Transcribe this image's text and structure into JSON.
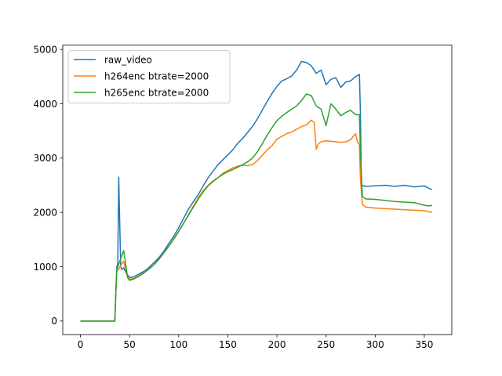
{
  "chart_data": {
    "type": "line",
    "title": "",
    "xlabel": "",
    "ylabel": "",
    "xlim": [
      -18,
      378
    ],
    "ylim": [
      -250,
      5080
    ],
    "xticks": [
      0,
      50,
      100,
      150,
      200,
      250,
      300,
      350
    ],
    "yticks": [
      0,
      1000,
      2000,
      3000,
      4000,
      5000
    ],
    "grid": false,
    "legend_position": "top-left",
    "series": [
      {
        "name": "raw_video",
        "color": "#1f77b4",
        "points": [
          [
            0,
            0
          ],
          [
            10,
            0
          ],
          [
            20,
            0
          ],
          [
            30,
            0
          ],
          [
            35,
            0
          ],
          [
            36,
            500
          ],
          [
            37,
            1000
          ],
          [
            38,
            1050
          ],
          [
            39,
            2650
          ],
          [
            40,
            1800
          ],
          [
            41,
            1000
          ],
          [
            42,
            950
          ],
          [
            44,
            980
          ],
          [
            46,
            900
          ],
          [
            48,
            850
          ],
          [
            50,
            800
          ],
          [
            55,
            820
          ],
          [
            60,
            870
          ],
          [
            65,
            920
          ],
          [
            70,
            990
          ],
          [
            75,
            1080
          ],
          [
            80,
            1170
          ],
          [
            85,
            1290
          ],
          [
            90,
            1430
          ],
          [
            95,
            1560
          ],
          [
            100,
            1720
          ],
          [
            105,
            1890
          ],
          [
            110,
            2060
          ],
          [
            115,
            2200
          ],
          [
            120,
            2330
          ],
          [
            125,
            2490
          ],
          [
            130,
            2640
          ],
          [
            135,
            2760
          ],
          [
            140,
            2880
          ],
          [
            145,
            2970
          ],
          [
            150,
            3060
          ],
          [
            155,
            3150
          ],
          [
            160,
            3270
          ],
          [
            165,
            3360
          ],
          [
            170,
            3470
          ],
          [
            175,
            3580
          ],
          [
            180,
            3720
          ],
          [
            185,
            3880
          ],
          [
            190,
            4040
          ],
          [
            195,
            4190
          ],
          [
            200,
            4320
          ],
          [
            205,
            4420
          ],
          [
            210,
            4460
          ],
          [
            215,
            4510
          ],
          [
            220,
            4620
          ],
          [
            225,
            4780
          ],
          [
            230,
            4760
          ],
          [
            235,
            4700
          ],
          [
            240,
            4560
          ],
          [
            245,
            4620
          ],
          [
            250,
            4350
          ],
          [
            255,
            4450
          ],
          [
            260,
            4480
          ],
          [
            265,
            4300
          ],
          [
            270,
            4400
          ],
          [
            275,
            4420
          ],
          [
            280,
            4500
          ],
          [
            284,
            4540
          ],
          [
            285,
            3800
          ],
          [
            286,
            2500
          ],
          [
            290,
            2480
          ],
          [
            300,
            2490
          ],
          [
            310,
            2500
          ],
          [
            320,
            2480
          ],
          [
            330,
            2500
          ],
          [
            340,
            2470
          ],
          [
            350,
            2490
          ],
          [
            355,
            2440
          ],
          [
            358,
            2420
          ]
        ]
      },
      {
        "name": "h264enc btrate=2000",
        "color": "#ff7f0e",
        "points": [
          [
            0,
            0
          ],
          [
            10,
            0
          ],
          [
            20,
            0
          ],
          [
            30,
            0
          ],
          [
            35,
            0
          ],
          [
            36,
            500
          ],
          [
            37,
            900
          ],
          [
            38,
            950
          ],
          [
            39,
            950
          ],
          [
            40,
            1000
          ],
          [
            42,
            1050
          ],
          [
            44,
            1100
          ],
          [
            46,
            950
          ],
          [
            48,
            800
          ],
          [
            50,
            770
          ],
          [
            55,
            790
          ],
          [
            60,
            840
          ],
          [
            65,
            900
          ],
          [
            70,
            960
          ],
          [
            75,
            1040
          ],
          [
            80,
            1140
          ],
          [
            85,
            1260
          ],
          [
            90,
            1380
          ],
          [
            95,
            1510
          ],
          [
            100,
            1650
          ],
          [
            105,
            1800
          ],
          [
            110,
            1960
          ],
          [
            115,
            2120
          ],
          [
            120,
            2270
          ],
          [
            125,
            2400
          ],
          [
            130,
            2500
          ],
          [
            135,
            2580
          ],
          [
            140,
            2640
          ],
          [
            145,
            2720
          ],
          [
            150,
            2770
          ],
          [
            155,
            2820
          ],
          [
            160,
            2850
          ],
          [
            165,
            2870
          ],
          [
            170,
            2860
          ],
          [
            175,
            2880
          ],
          [
            180,
            2950
          ],
          [
            185,
            3050
          ],
          [
            190,
            3150
          ],
          [
            195,
            3230
          ],
          [
            200,
            3350
          ],
          [
            205,
            3400
          ],
          [
            210,
            3450
          ],
          [
            215,
            3480
          ],
          [
            220,
            3530
          ],
          [
            225,
            3580
          ],
          [
            230,
            3610
          ],
          [
            235,
            3700
          ],
          [
            238,
            3650
          ],
          [
            240,
            3160
          ],
          [
            242,
            3260
          ],
          [
            245,
            3300
          ],
          [
            250,
            3320
          ],
          [
            255,
            3310
          ],
          [
            260,
            3300
          ],
          [
            265,
            3290
          ],
          [
            270,
            3300
          ],
          [
            275,
            3340
          ],
          [
            280,
            3450
          ],
          [
            282,
            3300
          ],
          [
            284,
            3250
          ],
          [
            285,
            2600
          ],
          [
            287,
            2150
          ],
          [
            290,
            2100
          ],
          [
            300,
            2080
          ],
          [
            310,
            2070
          ],
          [
            320,
            2060
          ],
          [
            330,
            2050
          ],
          [
            340,
            2040
          ],
          [
            350,
            2030
          ],
          [
            355,
            2010
          ],
          [
            358,
            2000
          ]
        ]
      },
      {
        "name": "h265enc btrate=2000",
        "color": "#2ca02c",
        "points": [
          [
            0,
            0
          ],
          [
            10,
            0
          ],
          [
            20,
            0
          ],
          [
            30,
            0
          ],
          [
            35,
            0
          ],
          [
            36,
            500
          ],
          [
            37,
            950
          ],
          [
            38,
            1000
          ],
          [
            39,
            1050
          ],
          [
            40,
            1100
          ],
          [
            42,
            1200
          ],
          [
            44,
            1300
          ],
          [
            46,
            1050
          ],
          [
            48,
            800
          ],
          [
            50,
            750
          ],
          [
            55,
            780
          ],
          [
            60,
            830
          ],
          [
            65,
            890
          ],
          [
            70,
            960
          ],
          [
            75,
            1040
          ],
          [
            80,
            1140
          ],
          [
            85,
            1260
          ],
          [
            90,
            1380
          ],
          [
            95,
            1510
          ],
          [
            100,
            1650
          ],
          [
            105,
            1800
          ],
          [
            110,
            1950
          ],
          [
            115,
            2100
          ],
          [
            120,
            2250
          ],
          [
            125,
            2380
          ],
          [
            130,
            2490
          ],
          [
            135,
            2570
          ],
          [
            140,
            2640
          ],
          [
            145,
            2700
          ],
          [
            150,
            2750
          ],
          [
            155,
            2790
          ],
          [
            160,
            2830
          ],
          [
            165,
            2880
          ],
          [
            170,
            2930
          ],
          [
            175,
            3000
          ],
          [
            180,
            3110
          ],
          [
            185,
            3260
          ],
          [
            190,
            3420
          ],
          [
            195,
            3560
          ],
          [
            200,
            3690
          ],
          [
            205,
            3770
          ],
          [
            210,
            3840
          ],
          [
            215,
            3900
          ],
          [
            220,
            3960
          ],
          [
            225,
            4060
          ],
          [
            230,
            4180
          ],
          [
            235,
            4150
          ],
          [
            240,
            3960
          ],
          [
            245,
            3900
          ],
          [
            250,
            3600
          ],
          [
            255,
            4000
          ],
          [
            260,
            3900
          ],
          [
            265,
            3780
          ],
          [
            270,
            3840
          ],
          [
            275,
            3880
          ],
          [
            280,
            3800
          ],
          [
            284,
            3800
          ],
          [
            285,
            3100
          ],
          [
            287,
            2300
          ],
          [
            290,
            2250
          ],
          [
            300,
            2240
          ],
          [
            310,
            2220
          ],
          [
            320,
            2200
          ],
          [
            330,
            2190
          ],
          [
            340,
            2180
          ],
          [
            350,
            2130
          ],
          [
            355,
            2120
          ],
          [
            358,
            2130
          ]
        ]
      }
    ]
  }
}
